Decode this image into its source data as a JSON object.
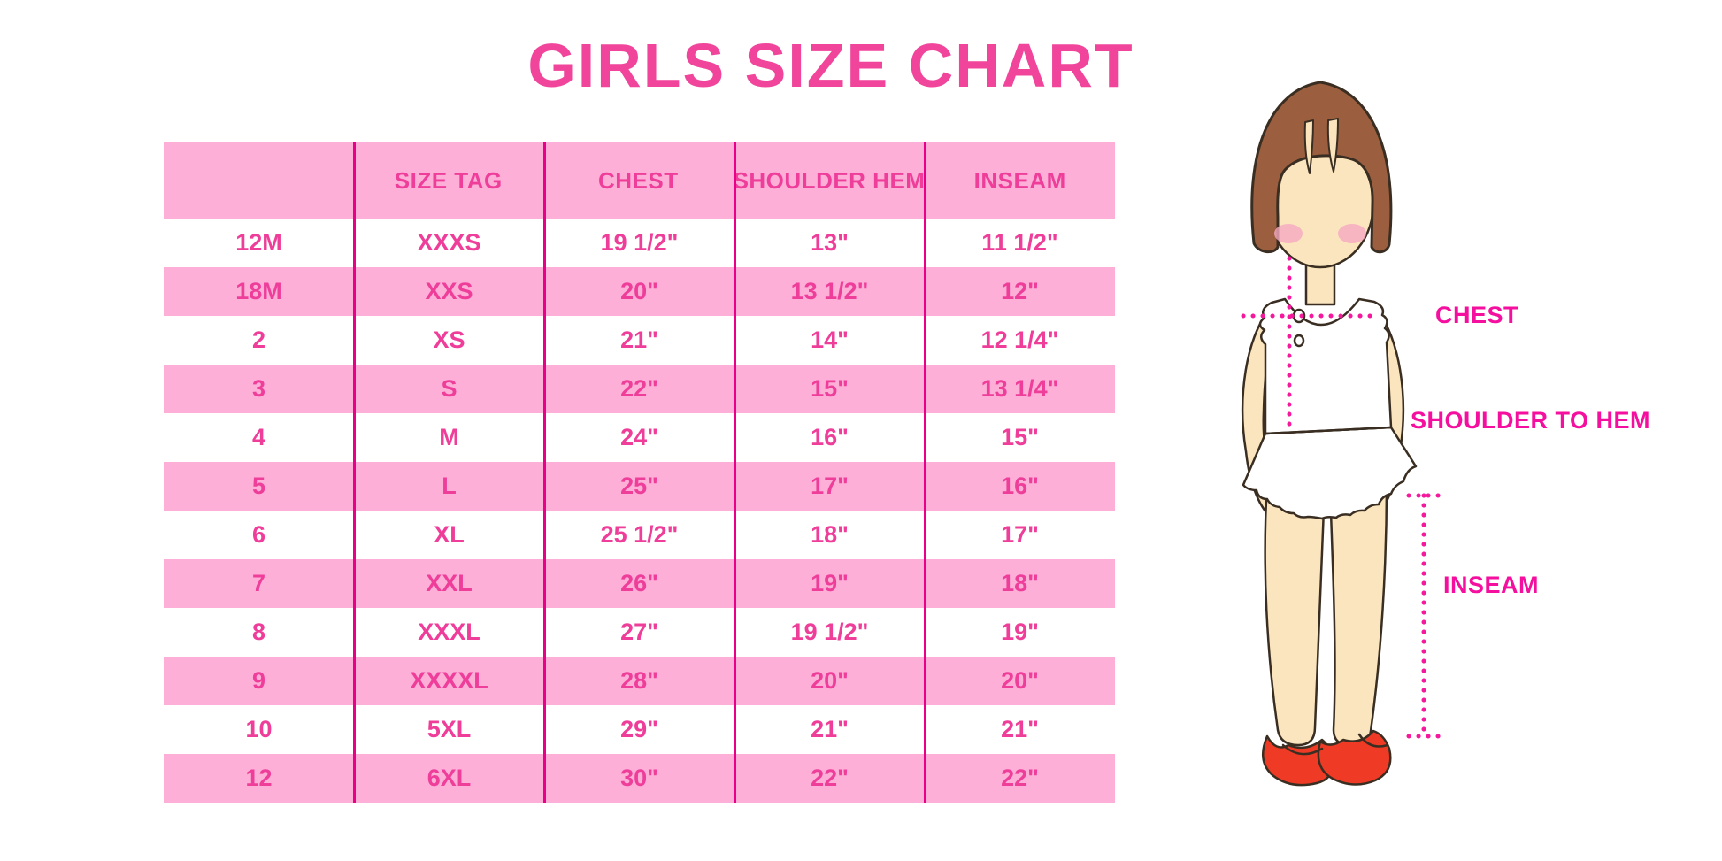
{
  "title": "GIRLS SIZE CHART",
  "chart_data": {
    "type": "table",
    "title": "GIRLS SIZE CHART",
    "columns": [
      "",
      "SIZE TAG",
      "CHEST",
      "SHOULDER HEM",
      "INSEAM"
    ],
    "rows": [
      [
        "12M",
        "XXXS",
        "19 1/2\"",
        "13\"",
        "11 1/2\""
      ],
      [
        "18M",
        "XXS",
        "20\"",
        "13 1/2\"",
        "12\""
      ],
      [
        "2",
        "XS",
        "21\"",
        "14\"",
        "12 1/4\""
      ],
      [
        "3",
        "S",
        "22\"",
        "15\"",
        "13 1/4\""
      ],
      [
        "4",
        "M",
        "24\"",
        "16\"",
        "15\""
      ],
      [
        "5",
        "L",
        "25\"",
        "17\"",
        "16\""
      ],
      [
        "6",
        "XL",
        "25 1/2\"",
        "18\"",
        "17\""
      ],
      [
        "7",
        "XXL",
        "26\"",
        "19\"",
        "18\""
      ],
      [
        "8",
        "XXXL",
        "27\"",
        "19 1/2\"",
        "19\""
      ],
      [
        "9",
        "XXXXL",
        "28\"",
        "20\"",
        "20\""
      ],
      [
        "10",
        "5XL",
        "29\"",
        "21\"",
        "21\""
      ],
      [
        "12",
        "6XL",
        "30\"",
        "22\"",
        "22\""
      ]
    ],
    "layout": {
      "striped_rows": true,
      "stripe_pattern": "header pink, then alternating white/pink"
    }
  },
  "figure": {
    "labels": {
      "chest": "CHEST",
      "shoulder_to_hem": "SHOULDER TO HEM",
      "inseam": "INSEAM"
    }
  },
  "colors": {
    "row_pink": "#FDAFD8",
    "divider": "#EA0088",
    "cell_text": "#EE3E9A",
    "title_text": "#F0459B",
    "label_magenta": "#F50F9E",
    "dotted_line": "#F5189C",
    "hair_brown": "#9B5F3F",
    "skin": "#FBE5BE",
    "blush": "#F5A9C1",
    "shoe_red": "#EF3B25",
    "outline": "#3A2E22"
  }
}
